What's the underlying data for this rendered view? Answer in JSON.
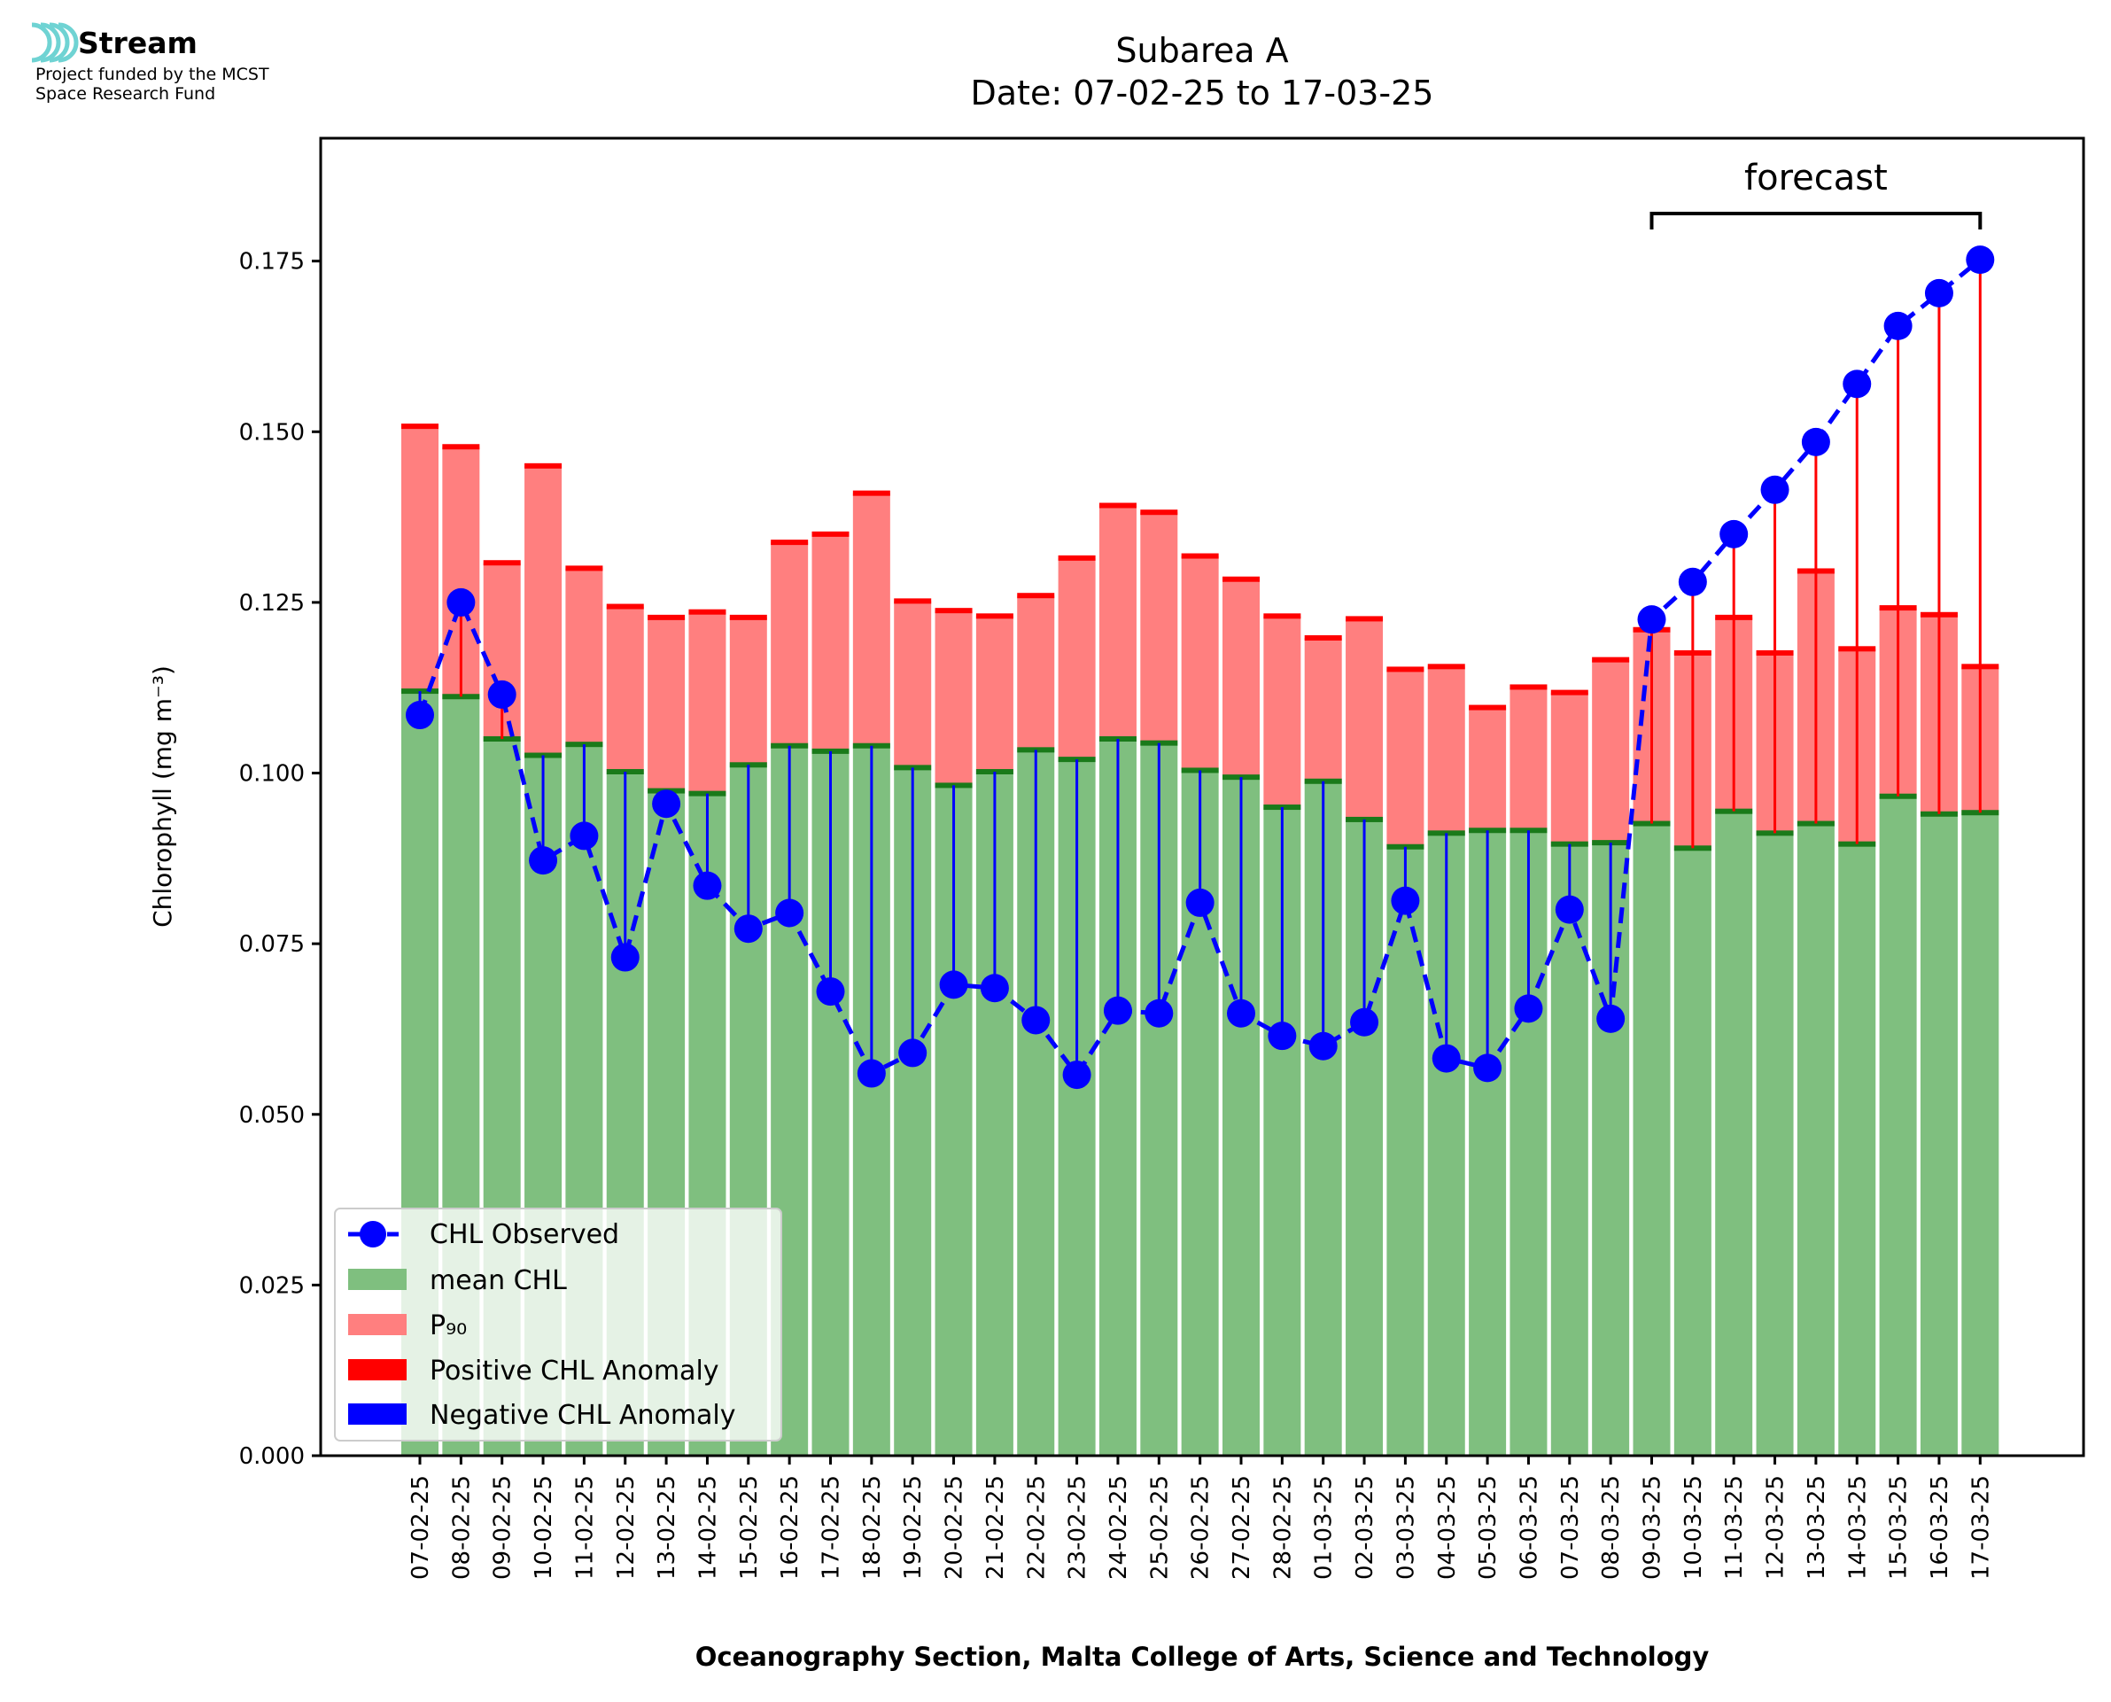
{
  "logo": {
    "name": "Stream",
    "line1": "Project funded by the MCST",
    "line2": "Space Research Fund"
  },
  "colors": {
    "mean": "#7fbf7f",
    "mean_cap": "#1a7a1a",
    "p90": "#ff7f7f",
    "p90_cap": "#ff0000",
    "observed": "#0000ff",
    "positive_anomaly": "#ff0000",
    "negative_anomaly": "#0000ff"
  },
  "chart_data": {
    "type": "bar",
    "title_line1": "Subarea A",
    "title_line2": "Date: 07-02-25 to 17-03-25",
    "xlabel": "Oceanography Section, Malta College of Arts, Science and Technology",
    "ylabel": "Chlorophyll (mg m⁻³)",
    "ylim": [
      0,
      0.193
    ],
    "yticks": [
      "0.000",
      "0.025",
      "0.050",
      "0.075",
      "0.100",
      "0.125",
      "0.150",
      "0.175"
    ],
    "forecast_label": "forecast",
    "forecast_start": "09-03-25",
    "forecast_end": "17-03-25",
    "categories": [
      "07-02-25",
      "08-02-25",
      "09-02-25",
      "10-02-25",
      "11-02-25",
      "12-02-25",
      "13-02-25",
      "14-02-25",
      "15-02-25",
      "16-02-25",
      "17-02-25",
      "18-02-25",
      "19-02-25",
      "20-02-25",
      "21-02-25",
      "22-02-25",
      "23-02-25",
      "24-02-25",
      "25-02-25",
      "26-02-25",
      "27-02-25",
      "28-02-25",
      "01-03-25",
      "02-03-25",
      "03-03-25",
      "04-03-25",
      "05-03-25",
      "06-03-25",
      "07-03-25",
      "08-03-25",
      "09-03-25",
      "10-03-25",
      "11-03-25",
      "12-03-25",
      "13-03-25",
      "14-03-25",
      "15-03-25",
      "16-03-25",
      "17-03-25"
    ],
    "series": [
      {
        "name": "mean CHL",
        "values": [
          0.112,
          0.1112,
          0.105,
          0.1026,
          0.1042,
          0.1002,
          0.0974,
          0.097,
          0.1012,
          0.104,
          0.1032,
          0.104,
          0.1008,
          0.0982,
          0.1002,
          0.1034,
          0.102,
          0.105,
          0.1044,
          0.1004,
          0.0994,
          0.095,
          0.0988,
          0.0932,
          0.0892,
          0.0912,
          0.0916,
          0.0916,
          0.0896,
          0.0898,
          0.0926,
          0.089,
          0.0944,
          0.0912,
          0.0926,
          0.0896,
          0.0966,
          0.094,
          0.0942
        ]
      },
      {
        "name": "P90",
        "values": [
          0.1508,
          0.1478,
          0.1308,
          0.145,
          0.13,
          0.1244,
          0.1228,
          0.1236,
          0.1228,
          0.1338,
          0.135,
          0.141,
          0.1252,
          0.1238,
          0.123,
          0.126,
          0.1315,
          0.1392,
          0.1382,
          0.1318,
          0.1284,
          0.123,
          0.1198,
          0.1226,
          0.1152,
          0.1156,
          0.1096,
          0.1126,
          0.1118,
          0.1166,
          0.121,
          0.1176,
          0.1228,
          0.1176,
          0.1296,
          0.1182,
          0.1242,
          0.1232,
          0.1156
        ]
      },
      {
        "name": "CHL Observed",
        "values": [
          0.1085,
          0.125,
          0.1115,
          0.0872,
          0.0908,
          0.073,
          0.0955,
          0.0835,
          0.0772,
          0.0795,
          0.068,
          0.056,
          0.059,
          0.069,
          0.0685,
          0.0638,
          0.0558,
          0.0652,
          0.0648,
          0.081,
          0.0648,
          0.0615,
          0.06,
          0.0635,
          0.0813,
          0.0582,
          0.0568,
          0.0655,
          0.08,
          0.064,
          0.1225,
          0.128,
          0.135,
          0.1415,
          0.1485,
          0.157,
          0.1655,
          0.1703,
          0.1752
        ]
      }
    ],
    "legend": {
      "position": "lower-left",
      "entries": [
        "CHL Observed",
        "mean CHL",
        "P₉₀",
        "Positive CHL Anomaly",
        "Negative CHL Anomaly"
      ]
    }
  }
}
